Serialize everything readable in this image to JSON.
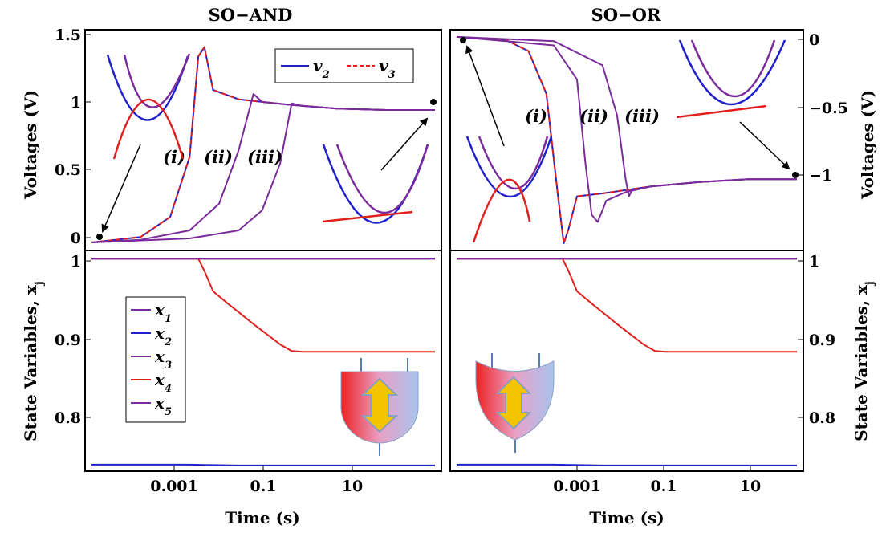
{
  "chart_data": [
    {
      "id": "and_voltage",
      "type": "line",
      "title": "SO−AND",
      "xlabel": "",
      "ylabel": "Voltages (V)",
      "x_scale": "log",
      "xlim": [
        1e-05,
        100
      ],
      "ylim": [
        -0.05,
        1.6
      ],
      "yticks": [
        "0",
        "0.5",
        "1",
        "1.5"
      ],
      "legend": [
        "v2",
        "v3"
      ],
      "legend_position": "top-right",
      "annotations": [
        "(i)",
        "(ii)",
        "(iii)"
      ],
      "series": [
        {
          "name": "v2",
          "color": "#1f1fcc",
          "style": "solid",
          "x": [
            1e-05,
            0.0001,
            0.0004,
            0.001,
            0.0015,
            0.002,
            0.003,
            0.01,
            0.1,
            1,
            10,
            100
          ],
          "y": [
            0.01,
            0.05,
            0.2,
            0.65,
            1.4,
            1.47,
            1.15,
            1.08,
            1.04,
            1.01,
            1.0,
            1.0
          ]
        },
        {
          "name": "v3",
          "color": "#e0201f",
          "style": "dashed",
          "x": [
            1e-05,
            0.0001,
            0.0004,
            0.001,
            0.0015,
            0.002,
            0.003,
            0.01,
            0.1,
            1,
            10,
            100
          ],
          "y": [
            0.01,
            0.05,
            0.2,
            0.65,
            1.4,
            1.47,
            1.15,
            1.08,
            1.04,
            1.01,
            1.0,
            1.0
          ]
        },
        {
          "name": "",
          "color": "#7a2a9a",
          "style": "solid",
          "x": [
            1e-05,
            0.0001,
            0.001,
            0.004,
            0.01,
            0.02,
            0.03,
            0.1,
            1,
            10,
            100
          ],
          "y": [
            0.01,
            0.03,
            0.1,
            0.3,
            0.7,
            1.12,
            1.06,
            1.04,
            1.01,
            1.0,
            1.0
          ]
        },
        {
          "name": "",
          "color": "#7a2a9a",
          "style": "solid",
          "x": [
            1e-05,
            0.001,
            0.01,
            0.03,
            0.07,
            0.12,
            0.2,
            1,
            10,
            100
          ],
          "y": [
            0.01,
            0.04,
            0.1,
            0.25,
            0.6,
            1.05,
            1.03,
            1.01,
            1.0,
            1.0
          ]
        }
      ]
    },
    {
      "id": "or_voltage",
      "type": "line",
      "title": "SO−OR",
      "xlabel": "",
      "ylabel": "Voltages (V)",
      "x_scale": "log",
      "xlim": [
        1e-05,
        100
      ],
      "ylim": [
        -1.5,
        0.05
      ],
      "yticks": [
        "0",
        "−0.5",
        "−1"
      ],
      "annotations": [
        "(i)",
        "(ii)",
        "(iii)"
      ],
      "series": [
        {
          "name": "v2",
          "color": "#1f1fcc",
          "style": "solid",
          "x": [
            1e-05,
            0.0001,
            0.0003,
            0.0007,
            0.0012,
            0.0016,
            0.002,
            0.003,
            0.01,
            0.1,
            1,
            10,
            100
          ],
          "y": [
            0.0,
            -0.02,
            -0.1,
            -0.4,
            -1.1,
            -1.45,
            -1.35,
            -1.12,
            -1.1,
            -1.05,
            -1.02,
            -1.0,
            -1.0
          ]
        },
        {
          "name": "v3",
          "color": "#e0201f",
          "style": "dashed",
          "x": [
            1e-05,
            0.0001,
            0.0003,
            0.0007,
            0.0012,
            0.0016,
            0.002,
            0.003,
            0.01,
            0.1,
            1,
            10,
            100
          ],
          "y": [
            0.0,
            -0.02,
            -0.1,
            -0.4,
            -1.1,
            -1.45,
            -1.35,
            -1.12,
            -1.1,
            -1.05,
            -1.02,
            -1.0,
            -1.0
          ]
        },
        {
          "name": "",
          "color": "#7a2a9a",
          "style": "solid",
          "x": [
            1e-05,
            0.001,
            0.003,
            0.0045,
            0.006,
            0.008,
            0.012,
            0.03,
            0.1,
            1,
            10,
            100
          ],
          "y": [
            0.0,
            -0.06,
            -0.3,
            -0.9,
            -1.25,
            -1.3,
            -1.15,
            -1.09,
            -1.05,
            -1.02,
            -1.0,
            -1.0
          ]
        },
        {
          "name": "",
          "color": "#7a2a9a",
          "style": "solid",
          "x": [
            1e-05,
            0.001,
            0.01,
            0.02,
            0.03,
            0.035,
            0.04,
            0.1,
            1,
            10,
            100
          ],
          "y": [
            0.0,
            -0.03,
            -0.2,
            -0.55,
            -1.0,
            -1.12,
            -1.08,
            -1.05,
            -1.02,
            -1.0,
            -1.0
          ]
        }
      ]
    },
    {
      "id": "and_state",
      "type": "line",
      "title": "",
      "xlabel": "Time (s)",
      "ylabel": "State Variables, x_j",
      "x_scale": "log",
      "xlim": [
        1e-05,
        100
      ],
      "ylim": [
        0.74,
        1.01
      ],
      "xticks": [
        "0.001",
        "0.1",
        "10"
      ],
      "yticks": [
        "0.8",
        "0.9",
        "1"
      ],
      "legend": [
        "x1",
        "x2",
        "x3",
        "x4",
        "x5"
      ],
      "legend_position": "left",
      "series": [
        {
          "name": "x1",
          "color": "#7a2a9a",
          "x": [
            1e-05,
            100
          ],
          "y": [
            1.0,
            1.0
          ]
        },
        {
          "name": "x2",
          "color": "#1f1fcc",
          "x": [
            1e-05,
            0.001,
            0.01,
            0.1,
            100
          ],
          "y": [
            0.748,
            0.748,
            0.747,
            0.747,
            0.747
          ]
        },
        {
          "name": "x3",
          "color": "#7a2a9a",
          "x": [
            1e-05,
            100
          ],
          "y": [
            1.0,
            1.0
          ]
        },
        {
          "name": "x4",
          "color": "#e0201f",
          "x": [
            1e-05,
            0.0015,
            0.002,
            0.003,
            0.006,
            0.02,
            0.07,
            0.12,
            0.2,
            1,
            100
          ],
          "y": [
            1.0,
            1.0,
            0.985,
            0.96,
            0.945,
            0.92,
            0.895,
            0.887,
            0.886,
            0.886,
            0.886
          ]
        },
        {
          "name": "x5",
          "color": "#7a2a9a",
          "x": [
            1e-05,
            100
          ],
          "y": [
            1.0,
            1.0
          ]
        }
      ]
    },
    {
      "id": "or_state",
      "type": "line",
      "title": "",
      "xlabel": "Time (s)",
      "ylabel": "State Variables, x_j",
      "x_scale": "log",
      "xlim": [
        1e-05,
        100
      ],
      "ylim": [
        0.74,
        1.01
      ],
      "xticks": [
        "0.001",
        "0.1",
        "10"
      ],
      "yticks": [
        "0.8",
        "0.9",
        "1"
      ],
      "series": [
        {
          "name": "x1",
          "color": "#7a2a9a",
          "x": [
            1e-05,
            100
          ],
          "y": [
            1.0,
            1.0
          ]
        },
        {
          "name": "x2",
          "color": "#1f1fcc",
          "x": [
            1e-05,
            0.001,
            0.01,
            0.1,
            100
          ],
          "y": [
            0.748,
            0.748,
            0.747,
            0.747,
            0.747
          ]
        },
        {
          "name": "x3",
          "color": "#7a2a9a",
          "x": [
            1e-05,
            100
          ],
          "y": [
            1.0,
            1.0
          ]
        },
        {
          "name": "x4",
          "color": "#e0201f",
          "x": [
            1e-05,
            0.0015,
            0.002,
            0.003,
            0.006,
            0.02,
            0.07,
            0.12,
            0.2,
            1,
            100
          ],
          "y": [
            1.0,
            1.0,
            0.985,
            0.96,
            0.945,
            0.92,
            0.895,
            0.887,
            0.886,
            0.886,
            0.886
          ]
        },
        {
          "name": "x5",
          "color": "#7a2a9a",
          "x": [
            1e-05,
            100
          ],
          "y": [
            1.0,
            1.0
          ]
        }
      ]
    }
  ]
}
